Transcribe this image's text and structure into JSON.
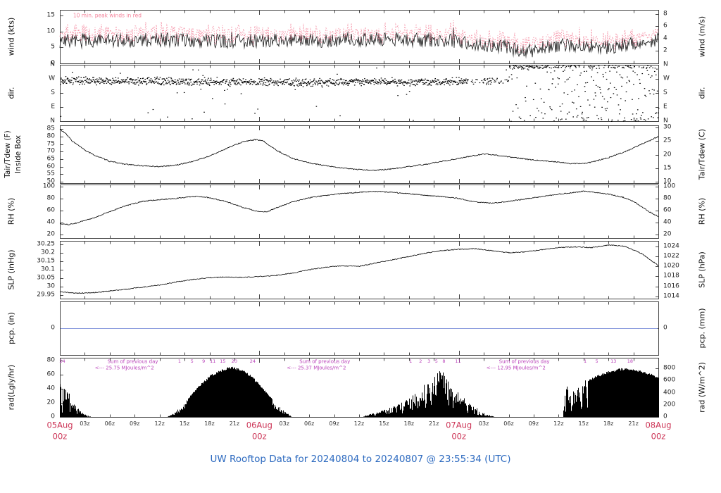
{
  "title": "UW Rooftop Data for 20240804  to  20240807 @ 23:55:34  (UTC)",
  "colors": {
    "frame": "#444444",
    "trace": "#000000",
    "peak_wind": "#f4849b",
    "magenta": "#bb44bb",
    "date_red": "#cc3355",
    "title_blue": "#2e6bc0",
    "precip_blue": "#8899dd",
    "tick_text": "#222222"
  },
  "x_axis": {
    "hours_total": 72,
    "minor_tick_hours": 3,
    "minor_labels": [
      "03z",
      "06z",
      "09z",
      "12z",
      "15z",
      "18z",
      "21z"
    ],
    "day_labels": [
      {
        "hour": 0,
        "date": "05Aug",
        "time": "00z"
      },
      {
        "hour": 24,
        "date": "06Aug",
        "time": "00z"
      },
      {
        "hour": 48,
        "date": "07Aug",
        "time": "00z"
      },
      {
        "hour": 72,
        "date": "08Aug",
        "time": "00z"
      }
    ]
  },
  "chart_data": [
    {
      "id": "wind",
      "type": "line-noisy",
      "label_left": "wind (kts)",
      "label_right": "wind (m/s)",
      "ylim": [
        0,
        16.8
      ],
      "yticks_left": [
        0,
        5,
        10,
        15
      ],
      "yticks_right": [
        2,
        4,
        6,
        8
      ],
      "right_convert": "mps_to_kts",
      "annotation": {
        "text": "10 min. peak winds in red",
        "hour": 1.6
      },
      "series": [
        {
          "name": "wind_mean_kts",
          "noise": 2.2,
          "keypoints": [
            [
              0,
              7
            ],
            [
              6,
              7
            ],
            [
              12,
              7.5
            ],
            [
              18,
              7
            ],
            [
              24,
              7
            ],
            [
              30,
              7
            ],
            [
              36,
              7.5
            ],
            [
              42,
              7.5
            ],
            [
              48,
              7
            ],
            [
              51,
              6
            ],
            [
              54,
              5
            ],
            [
              56,
              3.5
            ],
            [
              58,
              5
            ],
            [
              60,
              5.5
            ],
            [
              63,
              6
            ],
            [
              66,
              5
            ],
            [
              69,
              6.5
            ],
            [
              72,
              7.5
            ]
          ]
        },
        {
          "name": "wind_peak_kts",
          "offset": 2.8,
          "noise": 1.2
        }
      ]
    },
    {
      "id": "dir",
      "type": "scatter-dir",
      "label_left": "dir.",
      "label_right": "dir.",
      "ylim": [
        0,
        360
      ],
      "yticks_left": [
        {
          "v": 360,
          "label": "N"
        },
        {
          "v": 270,
          "label": "W"
        },
        {
          "v": 180,
          "label": "S"
        },
        {
          "v": 90,
          "label": "E"
        },
        {
          "v": 0,
          "label": "N"
        }
      ],
      "yticks_right": [
        {
          "v": 360,
          "label": "N"
        },
        {
          "v": 270,
          "label": "W"
        },
        {
          "v": 180,
          "label": "S"
        },
        {
          "v": 90,
          "label": "E"
        },
        {
          "v": 0,
          "label": "N"
        }
      ],
      "right_convert": "identity",
      "base_keypoints": [
        [
          0,
          262
        ],
        [
          6,
          260
        ],
        [
          12,
          257
        ],
        [
          18,
          254
        ],
        [
          24,
          252
        ],
        [
          30,
          250
        ],
        [
          36,
          256
        ],
        [
          42,
          250
        ],
        [
          48,
          256
        ],
        [
          53,
          262
        ]
      ],
      "scatter_spread": 18,
      "regime_change_hour": 54
    },
    {
      "id": "temp",
      "type": "line",
      "label_left": "Tair/Tdew (F)",
      "label_left2": "Inside Box",
      "label_right": "Tair/Tdew (C)",
      "ylim": [
        49,
        87.5
      ],
      "yticks_left": [
        50,
        55,
        60,
        65,
        70,
        75,
        80,
        85
      ],
      "yticks_right": [
        10,
        15,
        20,
        25,
        30
      ],
      "right_convert": "C_to_F",
      "series": [
        {
          "name": "Tair_F",
          "noise": 0.35,
          "keypoints": [
            [
              0,
              85
            ],
            [
              0.7,
              82
            ],
            [
              1.5,
              77
            ],
            [
              3,
              71
            ],
            [
              4,
              68
            ],
            [
              6,
              63.5
            ],
            [
              8,
              61.5
            ],
            [
              10,
              60.5
            ],
            [
              12,
              60
            ],
            [
              14,
              61
            ],
            [
              16,
              63.5
            ],
            [
              18,
              67
            ],
            [
              20,
              72
            ],
            [
              22,
              76.5
            ],
            [
              23.5,
              78
            ],
            [
              24.5,
              77
            ],
            [
              26,
              71
            ],
            [
              28,
              65.5
            ],
            [
              30,
              62.5
            ],
            [
              32,
              60.5
            ],
            [
              34,
              59
            ],
            [
              36,
              58
            ],
            [
              38,
              57.5
            ],
            [
              40,
              58.5
            ],
            [
              42,
              60
            ],
            [
              44,
              61.5
            ],
            [
              46,
              63.5
            ],
            [
              48,
              65.5
            ],
            [
              50,
              67.5
            ],
            [
              51,
              68.5
            ],
            [
              52,
              68
            ],
            [
              54,
              66.5
            ],
            [
              56,
              65
            ],
            [
              58,
              64
            ],
            [
              60,
              63
            ],
            [
              61.5,
              62
            ],
            [
              63,
              62
            ],
            [
              64,
              63
            ],
            [
              66,
              66
            ],
            [
              68,
              70
            ],
            [
              70,
              75
            ],
            [
              71,
              77.5
            ],
            [
              72,
              80
            ]
          ]
        }
      ]
    },
    {
      "id": "rh",
      "type": "line",
      "label_left": "RH (%)",
      "label_right": "RH (%)",
      "ylim": [
        14,
        103
      ],
      "yticks_left": [
        20,
        40,
        60,
        80,
        100
      ],
      "yticks_right": [
        20,
        40,
        60,
        80,
        100
      ],
      "right_convert": "identity",
      "series": [
        {
          "name": "RH_pct",
          "noise": 0.8,
          "keypoints": [
            [
              0,
              38
            ],
            [
              1,
              36.5
            ],
            [
              2,
              39
            ],
            [
              4,
              47
            ],
            [
              6,
              58
            ],
            [
              8,
              68
            ],
            [
              10,
              75
            ],
            [
              12,
              78
            ],
            [
              14,
              80
            ],
            [
              16,
              83
            ],
            [
              17,
              83
            ],
            [
              18,
              81
            ],
            [
              20,
              75
            ],
            [
              22,
              65
            ],
            [
              24,
              57.5
            ],
            [
              25,
              58
            ],
            [
              26,
              64
            ],
            [
              28,
              74
            ],
            [
              30,
              81
            ],
            [
              32,
              85
            ],
            [
              34,
              88
            ],
            [
              36,
              90
            ],
            [
              38,
              91.5
            ],
            [
              40,
              90
            ],
            [
              42,
              87.5
            ],
            [
              44,
              85
            ],
            [
              46,
              83
            ],
            [
              48,
              80
            ],
            [
              50,
              74
            ],
            [
              52,
              72
            ],
            [
              54,
              75
            ],
            [
              56,
              79
            ],
            [
              58,
              83
            ],
            [
              60,
              87
            ],
            [
              62,
              90
            ],
            [
              63,
              92
            ],
            [
              64,
              90.5
            ],
            [
              66,
              87
            ],
            [
              68,
              81
            ],
            [
              69,
              75
            ],
            [
              70,
              66
            ],
            [
              71,
              57
            ],
            [
              72,
              50
            ]
          ]
        }
      ]
    },
    {
      "id": "slp",
      "type": "line",
      "label_left": "SLP (inHg)",
      "label_right": "SLP (hPa)",
      "ylim": [
        29.93,
        30.27
      ],
      "yticks_left": [
        29.95,
        30.0,
        30.05,
        30.1,
        30.15,
        30.2,
        30.25
      ],
      "yticks_right": [
        1014,
        1016,
        1018,
        1020,
        1022,
        1024
      ],
      "right_convert": "hPa_to_inHg",
      "series": [
        {
          "name": "SLP_inHg",
          "noise": 0.0025,
          "keypoints": [
            [
              0,
              29.97
            ],
            [
              2,
              29.962
            ],
            [
              4,
              29.965
            ],
            [
              6,
              29.975
            ],
            [
              8,
              29.985
            ],
            [
              10,
              29.998
            ],
            [
              12,
              30.01
            ],
            [
              14,
              30.028
            ],
            [
              16,
              30.043
            ],
            [
              18,
              30.053
            ],
            [
              20,
              30.058
            ],
            [
              22,
              30.055
            ],
            [
              24,
              30.06
            ],
            [
              26,
              30.067
            ],
            [
              28,
              30.08
            ],
            [
              30,
              30.1
            ],
            [
              32,
              30.115
            ],
            [
              34,
              30.123
            ],
            [
              36,
              30.12
            ],
            [
              38,
              30.14
            ],
            [
              40,
              30.158
            ],
            [
              42,
              30.178
            ],
            [
              44,
              30.198
            ],
            [
              46,
              30.213
            ],
            [
              48,
              30.22
            ],
            [
              50,
              30.224
            ],
            [
              52,
              30.212
            ],
            [
              54,
              30.2
            ],
            [
              56,
              30.205
            ],
            [
              58,
              30.218
            ],
            [
              60,
              30.23
            ],
            [
              62,
              30.235
            ],
            [
              64,
              30.23
            ],
            [
              66,
              30.246
            ],
            [
              68,
              30.238
            ],
            [
              70,
              30.195
            ],
            [
              72,
              30.125
            ]
          ]
        }
      ]
    },
    {
      "id": "pcp",
      "type": "flatline",
      "label_left": "pcp. (in)",
      "label_right": "pcp. (mm)",
      "ylim": [
        -1,
        1
      ],
      "yticks_left": [
        0
      ],
      "yticks_right": [
        0
      ],
      "right_convert": "identity",
      "value": 0
    },
    {
      "id": "rad",
      "type": "solar-area",
      "label_left": "rad(Lgly/hr)",
      "label_right": "rad (W/m^2)",
      "ylim": [
        0,
        84
      ],
      "yticks_left": [
        0,
        20,
        40,
        60,
        80
      ],
      "yticks_right": [
        0,
        200,
        400,
        600,
        800
      ],
      "right_convert": "wm2_to_ly",
      "envelope": [
        [
          0,
          50
        ],
        [
          0.6,
          44
        ],
        [
          1.2,
          30
        ],
        [
          1.8,
          18
        ],
        [
          2.6,
          8
        ],
        [
          3.3,
          2
        ],
        [
          3.8,
          0
        ],
        [
          12.8,
          0
        ],
        [
          13.4,
          3
        ],
        [
          14,
          8
        ],
        [
          15,
          21
        ],
        [
          16,
          35
        ],
        [
          17,
          48
        ],
        [
          18,
          59
        ],
        [
          19,
          66
        ],
        [
          20,
          71
        ],
        [
          21,
          72
        ],
        [
          22,
          67
        ],
        [
          23,
          59
        ],
        [
          24,
          47
        ],
        [
          25,
          33
        ],
        [
          26,
          19
        ],
        [
          27,
          8
        ],
        [
          27.9,
          0
        ],
        [
          36.4,
          0
        ],
        [
          37,
          3
        ],
        [
          38,
          6
        ],
        [
          39,
          10
        ],
        [
          40,
          14
        ],
        [
          41,
          19
        ],
        [
          42,
          25
        ],
        [
          43,
          31
        ],
        [
          44,
          40
        ],
        [
          45,
          54
        ],
        [
          45.7,
          64
        ],
        [
          46.2,
          58
        ],
        [
          47,
          42
        ],
        [
          47.8,
          32
        ],
        [
          48.6,
          24
        ],
        [
          49.5,
          16
        ],
        [
          50.5,
          8
        ],
        [
          51.5,
          3
        ],
        [
          52.3,
          0
        ],
        [
          60.5,
          0
        ],
        [
          60.8,
          58
        ],
        [
          61.2,
          30
        ],
        [
          61.8,
          35
        ],
        [
          62.4,
          45
        ],
        [
          63.2,
          50
        ],
        [
          64.2,
          57
        ],
        [
          65.2,
          62
        ],
        [
          66.2,
          66
        ],
        [
          67.2,
          69
        ],
        [
          68.2,
          70
        ],
        [
          69.2,
          68
        ],
        [
          70.2,
          65
        ],
        [
          71,
          62
        ],
        [
          72,
          57
        ]
      ],
      "segments": [
        {
          "from": 0,
          "to": 3.9,
          "style": "spiky"
        },
        {
          "from": 12.6,
          "to": 28.2,
          "style": "smooth-ragged-edges"
        },
        {
          "from": 36.2,
          "to": 52.5,
          "style": "very-spiky"
        },
        {
          "from": 60.4,
          "to": 63.5,
          "style": "spiky"
        },
        {
          "from": 63.5,
          "to": 72,
          "style": "smooth"
        }
      ],
      "sum_annotations": [
        {
          "hour": 4.2,
          "line1": "Sum of previous day",
          "line2": "<--- 25.75 MJoules/m^2"
        },
        {
          "hour": 27.3,
          "line1": "Sum of previous day",
          "line2": "<--- 25.37 MJoules/m^2"
        },
        {
          "hour": 51.3,
          "line1": "Sum of previous day",
          "line2": "<--- 12.95 MJoules/m^2"
        }
      ],
      "cumulative_labels": [
        {
          "hour": 0.3,
          "label": "24"
        },
        {
          "hour": 14.4,
          "label": "1"
        },
        {
          "hour": 15.9,
          "label": "5"
        },
        {
          "hour": 17.3,
          "label": "9"
        },
        {
          "hour": 18.4,
          "label": "11"
        },
        {
          "hour": 19.6,
          "label": "15"
        },
        {
          "hour": 21.0,
          "label": "20"
        },
        {
          "hour": 23.2,
          "label": "24"
        },
        {
          "hour": 42.2,
          "label": "1"
        },
        {
          "hour": 43.4,
          "label": "2"
        },
        {
          "hour": 44.4,
          "label": "3"
        },
        {
          "hour": 45.3,
          "label": "5"
        },
        {
          "hour": 46.2,
          "label": "8"
        },
        {
          "hour": 47.9,
          "label": "11"
        },
        {
          "hour": 63.2,
          "label": "1"
        },
        {
          "hour": 64.6,
          "label": "5"
        },
        {
          "hour": 66.6,
          "label": "13"
        },
        {
          "hour": 68.6,
          "label": "18"
        }
      ]
    }
  ]
}
